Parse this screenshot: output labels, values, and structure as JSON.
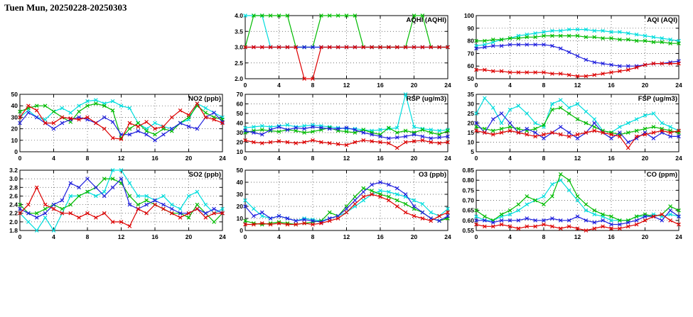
{
  "page": {
    "title": "Tuen Mun, 20250228-20250303"
  },
  "colors": {
    "red": "#dd0000",
    "green": "#00bb00",
    "blue": "#2020dd",
    "cyan": "#00dddd"
  },
  "chart_data": [
    {
      "type": "line",
      "title": "AQHI (AQHI)",
      "xlim": [
        0,
        24
      ],
      "xticks": [
        0,
        4,
        8,
        12,
        16,
        20,
        24
      ],
      "ylim": [
        2.0,
        4.0
      ],
      "yticks": [
        "2.0",
        "2.5",
        "3.0",
        "3.5",
        "4.0"
      ],
      "series": [
        {
          "name": "cyan",
          "color": "cyan",
          "values": [
            4,
            4,
            4,
            3,
            3,
            3,
            3,
            3,
            3,
            3,
            3,
            3,
            3,
            3,
            3,
            3,
            3,
            3,
            3,
            3,
            3,
            3,
            3,
            3,
            3
          ]
        },
        {
          "name": "green",
          "color": "green",
          "values": [
            3,
            4,
            4,
            4,
            4,
            4,
            3,
            3,
            3,
            4,
            4,
            4,
            4,
            4,
            3,
            3,
            3,
            3,
            3,
            3,
            4,
            4,
            3,
            3,
            3
          ]
        },
        {
          "name": "blue",
          "color": "blue",
          "values": [
            3,
            3,
            3,
            3,
            3,
            3,
            3,
            3,
            3,
            3,
            3,
            3,
            3,
            3,
            3,
            3,
            3,
            3,
            3,
            3,
            3,
            3,
            3,
            3,
            3
          ]
        },
        {
          "name": "red",
          "color": "red",
          "values": [
            3,
            3,
            3,
            3,
            3,
            3,
            3,
            2,
            2,
            3,
            3,
            3,
            3,
            3,
            3,
            3,
            3,
            3,
            3,
            3,
            3,
            3,
            3,
            3,
            3
          ]
        }
      ]
    },
    {
      "type": "line",
      "title": "AQI (AQI)",
      "xlim": [
        0,
        24
      ],
      "xticks": [
        0,
        4,
        8,
        12,
        16,
        20,
        24
      ],
      "ylim": [
        50,
        100
      ],
      "yticks": [
        "50",
        "60",
        "70",
        "80",
        "90",
        "100"
      ],
      "series": [
        {
          "name": "cyan",
          "color": "cyan",
          "values": [
            76,
            77,
            79,
            81,
            82,
            84,
            85,
            86,
            87,
            88,
            88,
            89,
            89,
            89,
            88,
            88,
            87,
            87,
            86,
            85,
            84,
            83,
            82,
            81,
            80
          ]
        },
        {
          "name": "green",
          "color": "green",
          "values": [
            80,
            80,
            81,
            81,
            82,
            82,
            83,
            83,
            84,
            84,
            84,
            84,
            84,
            83,
            83,
            82,
            82,
            81,
            81,
            80,
            80,
            79,
            79,
            78,
            78
          ]
        },
        {
          "name": "blue",
          "color": "blue",
          "values": [
            74,
            75,
            76,
            76,
            77,
            77,
            77,
            77,
            77,
            76,
            74,
            71,
            68,
            65,
            63,
            62,
            61,
            60,
            60,
            60,
            61,
            62,
            62,
            63,
            64
          ]
        },
        {
          "name": "red",
          "color": "red",
          "values": [
            57,
            57,
            56,
            56,
            55,
            55,
            55,
            55,
            55,
            54,
            54,
            53,
            52,
            52,
            53,
            54,
            55,
            56,
            57,
            59,
            61,
            62,
            62,
            62,
            62
          ]
        }
      ]
    },
    {
      "type": "line",
      "title": "NO2 (ppb)",
      "xlim": [
        0,
        24
      ],
      "xticks": [
        0,
        4,
        8,
        12,
        16,
        20,
        24
      ],
      "ylim": [
        0,
        50
      ],
      "yticks": [
        "0",
        "10",
        "20",
        "30",
        "40",
        "50"
      ],
      "series": [
        {
          "name": "cyan",
          "color": "cyan",
          "values": [
            30,
            36,
            30,
            28,
            35,
            38,
            34,
            40,
            44,
            45,
            42,
            44,
            40,
            38,
            25,
            20,
            25,
            22,
            20,
            25,
            28,
            42,
            38,
            34,
            30
          ]
        },
        {
          "name": "green",
          "color": "green",
          "values": [
            35,
            38,
            40,
            40,
            35,
            30,
            26,
            35,
            40,
            42,
            40,
            36,
            12,
            20,
            25,
            18,
            15,
            20,
            18,
            25,
            30,
            40,
            34,
            30,
            28
          ]
        },
        {
          "name": "blue",
          "color": "blue",
          "values": [
            25,
            34,
            30,
            25,
            20,
            25,
            28,
            30,
            28,
            25,
            30,
            26,
            15,
            15,
            18,
            15,
            10,
            15,
            20,
            25,
            22,
            20,
            30,
            34,
            26
          ]
        },
        {
          "name": "red",
          "color": "red",
          "values": [
            30,
            40,
            36,
            25,
            25,
            30,
            29,
            28,
            30,
            25,
            20,
            12,
            11,
            25,
            22,
            26,
            20,
            22,
            30,
            36,
            32,
            42,
            30,
            28,
            25
          ]
        }
      ]
    },
    {
      "type": "line",
      "title": "RSP (ug/m3)",
      "xlim": [
        0,
        24
      ],
      "xticks": [
        0,
        4,
        8,
        12,
        16,
        20,
        24
      ],
      "ylim": [
        10,
        70
      ],
      "yticks": [
        "10",
        "20",
        "30",
        "40",
        "50",
        "60",
        "70"
      ],
      "series": [
        {
          "name": "cyan",
          "color": "cyan",
          "values": [
            35,
            36,
            37,
            36,
            37,
            38,
            36,
            37,
            38,
            37,
            36,
            35,
            34,
            34,
            33,
            32,
            33,
            34,
            35,
            70,
            36,
            34,
            33,
            32,
            33
          ]
        },
        {
          "name": "green",
          "color": "green",
          "values": [
            30,
            32,
            33,
            32,
            31,
            33,
            32,
            30,
            31,
            33,
            35,
            32,
            31,
            30,
            33,
            30,
            28,
            35,
            30,
            32,
            30,
            33,
            30,
            28,
            32
          ]
        },
        {
          "name": "blue",
          "color": "blue",
          "values": [
            32,
            30,
            28,
            33,
            36,
            33,
            35,
            34,
            36,
            35,
            34,
            34,
            35,
            33,
            30,
            28,
            26,
            24,
            25,
            26,
            28,
            26,
            24,
            25,
            26
          ]
        },
        {
          "name": "red",
          "color": "red",
          "values": [
            22,
            20,
            19,
            20,
            21,
            20,
            19,
            20,
            22,
            20,
            19,
            18,
            17,
            20,
            22,
            21,
            20,
            19,
            14,
            20,
            21,
            22,
            20,
            19,
            20
          ]
        }
      ]
    },
    {
      "type": "line",
      "title": "FSP (ug/m3)",
      "xlim": [
        0,
        24
      ],
      "xticks": [
        0,
        4,
        8,
        12,
        16,
        20,
        24
      ],
      "ylim": [
        5,
        35
      ],
      "yticks": [
        "5",
        "10",
        "15",
        "20",
        "25",
        "30",
        "35"
      ],
      "series": [
        {
          "name": "cyan",
          "color": "cyan",
          "values": [
            25,
            33,
            28,
            20,
            27,
            29,
            25,
            20,
            18,
            30,
            32,
            28,
            30,
            26,
            22,
            16,
            15,
            18,
            20,
            22,
            24,
            25,
            20,
            18,
            16
          ]
        },
        {
          "name": "green",
          "color": "green",
          "values": [
            18,
            17,
            16,
            17,
            18,
            17,
            16,
            17,
            19,
            27,
            28,
            25,
            22,
            20,
            18,
            16,
            15,
            14,
            15,
            16,
            17,
            18,
            17,
            16,
            15
          ]
        },
        {
          "name": "blue",
          "color": "blue",
          "values": [
            20,
            15,
            22,
            25,
            20,
            15,
            17,
            15,
            12,
            15,
            18,
            15,
            12,
            15,
            20,
            15,
            12,
            15,
            10,
            12,
            15,
            12,
            15,
            13,
            13
          ]
        },
        {
          "name": "red",
          "color": "red",
          "values": [
            16,
            15,
            14,
            15,
            16,
            15,
            14,
            13,
            14,
            15,
            14,
            13,
            14,
            15,
            16,
            15,
            14,
            13,
            7,
            13,
            14,
            15,
            16,
            15,
            16
          ]
        }
      ]
    },
    {
      "type": "line",
      "title": "SO2 (ppb)",
      "xlim": [
        0,
        24
      ],
      "xticks": [
        0,
        4,
        8,
        12,
        16,
        20,
        24
      ],
      "ylim": [
        1.8,
        3.2
      ],
      "yticks": [
        "1.8",
        "2.0",
        "2.2",
        "2.4",
        "2.6",
        "2.8",
        "3.0",
        "3.2"
      ],
      "series": [
        {
          "name": "cyan",
          "color": "cyan",
          "values": [
            2.2,
            2.0,
            1.8,
            2.1,
            1.8,
            2.2,
            2.6,
            2.6,
            2.7,
            2.6,
            2.7,
            3.2,
            3.2,
            2.9,
            2.6,
            2.6,
            2.5,
            2.6,
            2.4,
            2.3,
            2.6,
            2.7,
            2.4,
            2.2,
            2.3
          ]
        },
        {
          "name": "green",
          "color": "green",
          "values": [
            2.4,
            2.2,
            2.2,
            2.3,
            2.4,
            2.3,
            2.4,
            2.6,
            2.7,
            2.8,
            3.0,
            3.0,
            2.9,
            2.6,
            2.4,
            2.5,
            2.4,
            2.3,
            2.2,
            2.2,
            2.1,
            2.4,
            2.2,
            2.0,
            2.2
          ]
        },
        {
          "name": "blue",
          "color": "blue",
          "values": [
            2.3,
            2.2,
            2.1,
            2.2,
            2.4,
            2.5,
            2.9,
            2.8,
            3.0,
            2.8,
            2.6,
            2.8,
            3.0,
            2.4,
            2.3,
            2.4,
            2.5,
            2.4,
            2.3,
            2.2,
            2.2,
            2.3,
            2.2,
            2.3,
            2.2
          ]
        },
        {
          "name": "red",
          "color": "red",
          "values": [
            2.2,
            2.4,
            2.8,
            2.4,
            2.3,
            2.2,
            2.2,
            2.1,
            2.2,
            2.1,
            2.2,
            2.0,
            2.0,
            1.9,
            2.3,
            2.2,
            2.4,
            2.3,
            2.2,
            2.1,
            2.2,
            2.3,
            2.1,
            2.2,
            2.2
          ]
        }
      ]
    },
    {
      "type": "line",
      "title": "O3 (ppb)",
      "xlim": [
        0,
        24
      ],
      "xticks": [
        0,
        4,
        8,
        12,
        16,
        20,
        24
      ],
      "ylim": [
        0,
        50
      ],
      "yticks": [
        "0",
        "10",
        "20",
        "30",
        "40",
        "50"
      ],
      "series": [
        {
          "name": "cyan",
          "color": "cyan",
          "values": [
            25,
            18,
            12,
            10,
            12,
            10,
            8,
            10,
            9,
            8,
            10,
            12,
            15,
            20,
            25,
            30,
            33,
            32,
            30,
            28,
            25,
            22,
            15,
            12,
            18
          ]
        },
        {
          "name": "green",
          "color": "green",
          "values": [
            8,
            6,
            5,
            6,
            7,
            6,
            5,
            6,
            7,
            8,
            15,
            12,
            20,
            28,
            35,
            33,
            30,
            28,
            25,
            22,
            18,
            15,
            10,
            8,
            10
          ]
        },
        {
          "name": "blue",
          "color": "blue",
          "values": [
            20,
            12,
            15,
            10,
            12,
            10,
            8,
            9,
            8,
            7,
            10,
            12,
            18,
            25,
            32,
            38,
            40,
            38,
            35,
            30,
            20,
            15,
            10,
            8,
            12
          ]
        },
        {
          "name": "red",
          "color": "red",
          "values": [
            5,
            5,
            6,
            5,
            6,
            5,
            5,
            6,
            5,
            6,
            8,
            10,
            15,
            22,
            28,
            30,
            28,
            25,
            20,
            15,
            12,
            10,
            8,
            12,
            15
          ]
        }
      ]
    },
    {
      "type": "line",
      "title": "CO (ppm)",
      "xlim": [
        0,
        24
      ],
      "xticks": [
        0,
        4,
        8,
        12,
        16,
        20,
        24
      ],
      "ylim": [
        0.55,
        0.85
      ],
      "yticks": [
        "0.55",
        "0.60",
        "0.65",
        "0.70",
        "0.75",
        "0.80",
        "0.85"
      ],
      "series": [
        {
          "name": "cyan",
          "color": "cyan",
          "values": [
            0.62,
            0.6,
            0.6,
            0.62,
            0.63,
            0.65,
            0.68,
            0.7,
            0.72,
            0.78,
            0.8,
            0.75,
            0.7,
            0.65,
            0.63,
            0.62,
            0.6,
            0.6,
            0.6,
            0.62,
            0.62,
            0.63,
            0.62,
            0.63,
            0.62
          ]
        },
        {
          "name": "green",
          "color": "green",
          "values": [
            0.65,
            0.62,
            0.6,
            0.63,
            0.65,
            0.68,
            0.72,
            0.7,
            0.68,
            0.72,
            0.83,
            0.8,
            0.72,
            0.68,
            0.65,
            0.63,
            0.62,
            0.6,
            0.6,
            0.62,
            0.63,
            0.62,
            0.63,
            0.67,
            0.65
          ]
        },
        {
          "name": "blue",
          "color": "blue",
          "values": [
            0.6,
            0.6,
            0.59,
            0.6,
            0.6,
            0.6,
            0.61,
            0.6,
            0.6,
            0.61,
            0.6,
            0.6,
            0.62,
            0.6,
            0.59,
            0.6,
            0.58,
            0.58,
            0.59,
            0.6,
            0.62,
            0.62,
            0.6,
            0.65,
            0.62
          ]
        },
        {
          "name": "red",
          "color": "red",
          "values": [
            0.58,
            0.57,
            0.57,
            0.58,
            0.57,
            0.56,
            0.57,
            0.57,
            0.58,
            0.57,
            0.56,
            0.57,
            0.56,
            0.55,
            0.56,
            0.57,
            0.56,
            0.56,
            0.57,
            0.58,
            0.6,
            0.62,
            0.63,
            0.6,
            0.58
          ]
        }
      ]
    }
  ]
}
